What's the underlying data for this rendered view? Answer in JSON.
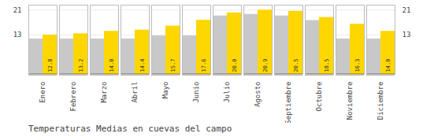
{
  "chart_data": {
    "type": "bar",
    "title": "Temperaturas Medias en cuevas del campo",
    "categories": [
      "Enero",
      "Febrero",
      "Marzo",
      "Abril",
      "Mayo",
      "Junio",
      "Julio",
      "Agosto",
      "Septiembre",
      "Octubre",
      "Noviembre",
      "Diciembre"
    ],
    "series": [
      {
        "color": "#C8C8C8",
        "values": [
          11.5,
          11.5,
          11.5,
          11.5,
          12.5,
          12.5,
          19.0,
          19.5,
          19.0,
          17.5,
          11.5,
          11.5
        ]
      },
      {
        "color": "#FFD700",
        "values": [
          12.8,
          13.2,
          14.0,
          14.4,
          15.7,
          17.6,
          20.0,
          20.9,
          20.5,
          18.5,
          16.3,
          14.0
        ],
        "data_labels": true,
        "value_labels": [
          "12.8",
          "13.2",
          "14.0",
          "14.4",
          "15.7",
          "17.6",
          "20.0",
          "20.9",
          "20.5",
          "18.5",
          "16.3",
          "14.0"
        ]
      }
    ],
    "ylim": [
      0,
      22.5
    ],
    "yticks": [
      12.8,
      20.9
    ],
    "grid": true
  }
}
